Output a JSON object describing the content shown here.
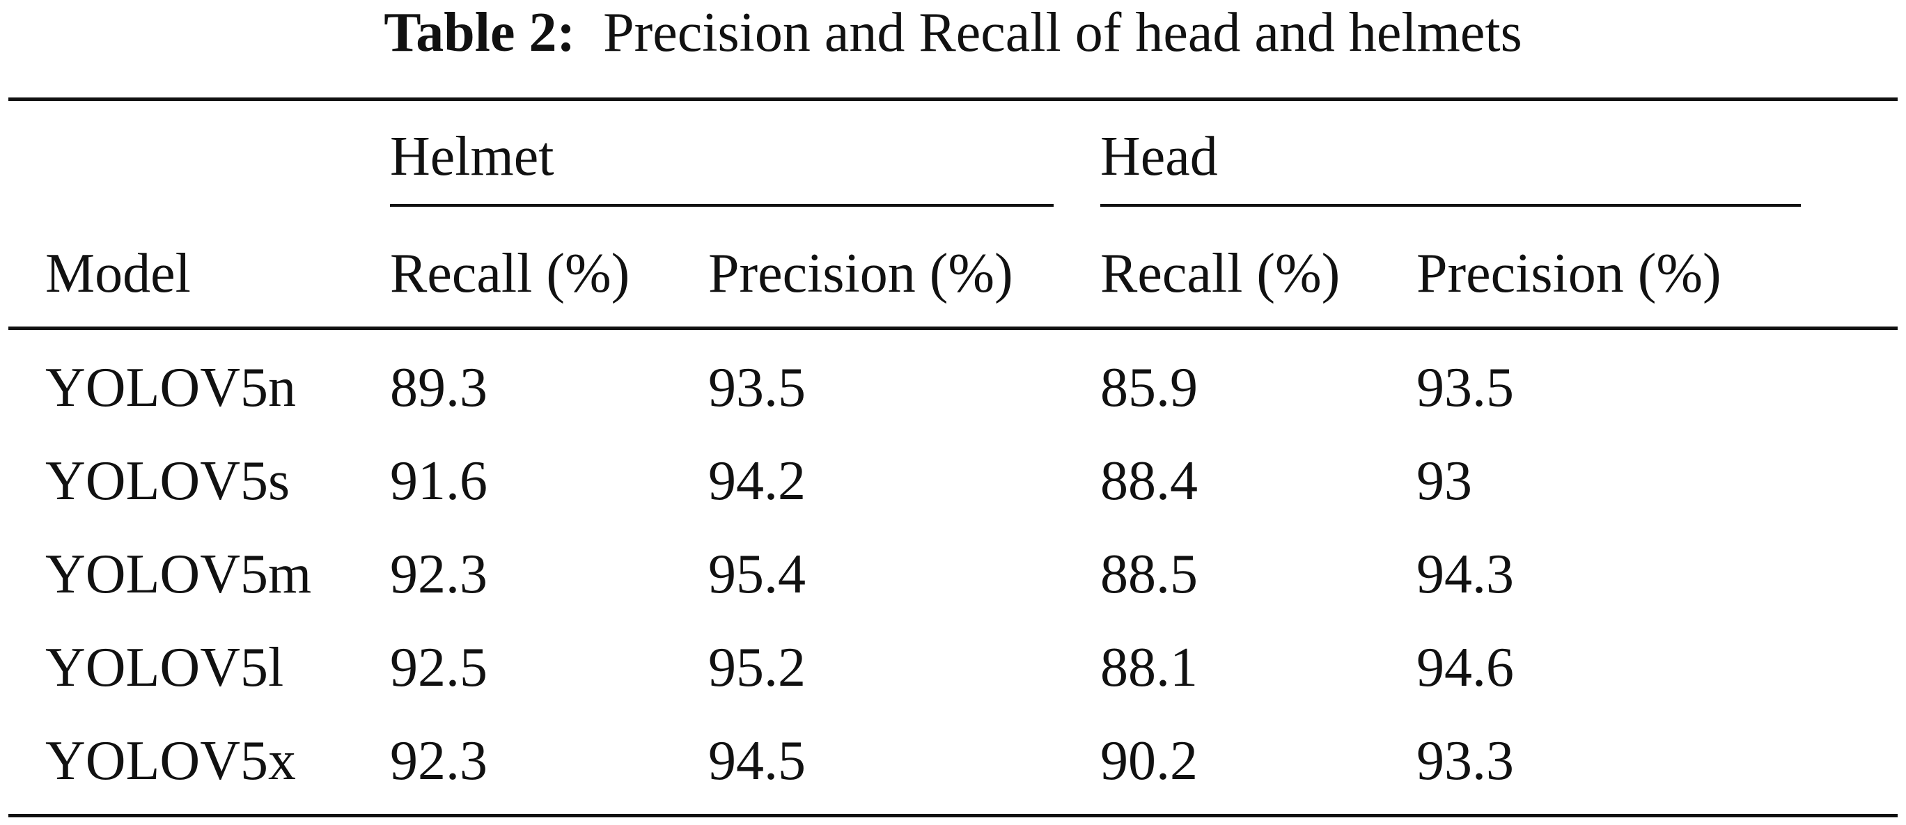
{
  "caption": {
    "label": "Table 2:",
    "text": "Precision and Recall of head and helmets"
  },
  "table": {
    "groups": [
      "Helmet",
      "Head"
    ],
    "columns": [
      "Model",
      "Recall (%)",
      "Precision (%)",
      "Recall (%)",
      "Precision (%)"
    ],
    "rows": [
      [
        "YOLOV5n",
        "89.3",
        "93.5",
        "85.9",
        "93.5"
      ],
      [
        "YOLOV5s",
        "91.6",
        "94.2",
        "88.4",
        "93"
      ],
      [
        "YOLOV5m",
        "92.3",
        "95.4",
        "88.5",
        "94.3"
      ],
      [
        "YOLOV5l",
        "92.5",
        "95.2",
        "88.1",
        "94.6"
      ],
      [
        "YOLOV5x",
        "92.3",
        "94.5",
        "90.2",
        "93.3"
      ]
    ]
  }
}
